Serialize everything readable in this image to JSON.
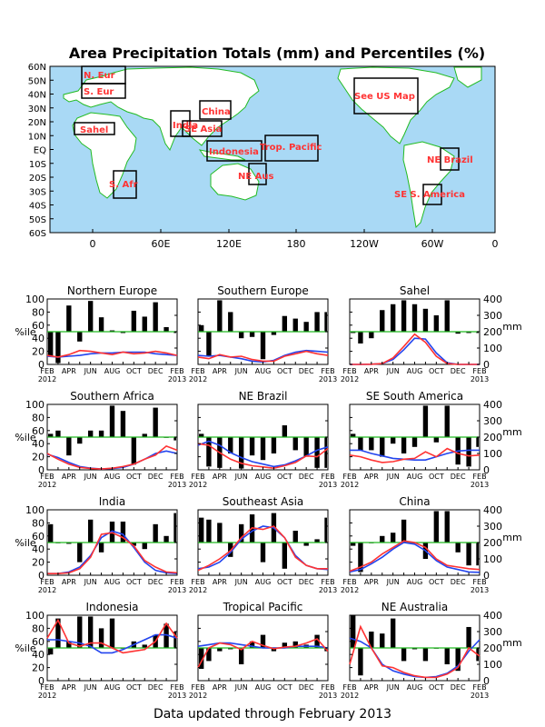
{
  "title": "Area Precipitation Totals (mm) and Percentiles (%)",
  "footer": "Data updated through February 2013",
  "colors": {
    "ocean": "#a9d9f5",
    "land": "#ffffff",
    "coast": "#22bb22",
    "region_box": "#000000",
    "region_label": "#ff3333",
    "bars": "#000000",
    "median_line": "#22bb22",
    "precip_line": "#ff3333",
    "normal_line": "#2244ee"
  },
  "map": {
    "lat_labels": [
      "60N",
      "50N",
      "40N",
      "30N",
      "20N",
      "10N",
      "EQ",
      "10S",
      "20S",
      "30S",
      "40S",
      "50S",
      "60S"
    ],
    "lon_labels": [
      "0",
      "60E",
      "120E",
      "180",
      "120W",
      "60W",
      "0"
    ],
    "regions": [
      "N. Eur",
      "S. Eur",
      "Sahel",
      "India",
      "SE Asia",
      "China",
      "Indonesia",
      "Trop. Pacific",
      "NE Aus",
      "S. Afr",
      "See US Map",
      "NE Brazil",
      "SE S. America"
    ]
  },
  "axis": {
    "pct_label": "%ile",
    "mm_label": "mm",
    "pct_ticks": [
      "0",
      "20",
      "40",
      "60",
      "80",
      "100"
    ],
    "mm_ticks": [
      "0",
      "100",
      "200",
      "300",
      "400"
    ],
    "month_ticks": [
      "FEB",
      "APR",
      "JUN",
      "AUG",
      "OCT",
      "DEC",
      "FEB"
    ],
    "year_start": "2012",
    "year_end": "2013"
  },
  "chart_data": [
    {
      "type": "bar",
      "title": "Northern Europe",
      "percentiles": [
        12,
        2,
        90,
        35,
        97,
        72,
        52,
        48,
        82,
        73,
        95,
        57,
        48
      ],
      "precip": [
        55,
        45,
        60,
        85,
        80,
        70,
        60,
        75,
        65,
        70,
        80,
        70,
        55
      ],
      "normal": [
        50,
        45,
        50,
        55,
        65,
        70,
        70,
        75,
        75,
        75,
        65,
        60,
        55
      ]
    },
    {
      "type": "bar",
      "title": "Southern Europe",
      "percentiles": [
        60,
        12,
        98,
        80,
        40,
        42,
        8,
        45,
        74,
        70,
        65,
        80,
        80
      ],
      "precip": [
        45,
        35,
        60,
        45,
        50,
        30,
        20,
        20,
        50,
        65,
        80,
        65,
        55
      ],
      "normal": [
        55,
        50,
        55,
        45,
        35,
        20,
        15,
        25,
        55,
        75,
        85,
        80,
        75
      ]
    },
    {
      "type": "bar",
      "title": "Sahel",
      "percentiles": [
        48,
        32,
        40,
        83,
        92,
        98,
        92,
        85,
        75,
        98,
        47,
        48,
        48
      ],
      "precip": [
        0,
        0,
        1,
        5,
        40,
        110,
        185,
        135,
        50,
        5,
        0,
        0,
        0
      ],
      "normal": [
        0,
        0,
        1,
        5,
        30,
        90,
        160,
        155,
        70,
        10,
        0,
        0,
        0
      ]
    },
    {
      "type": "bar",
      "title": "Southern Africa",
      "percentiles": [
        55,
        60,
        22,
        40,
        60,
        60,
        98,
        90,
        8,
        55,
        95,
        50,
        45
      ],
      "precip": [
        100,
        65,
        35,
        15,
        8,
        5,
        10,
        20,
        35,
        65,
        90,
        145,
        120
      ],
      "normal": [
        95,
        75,
        45,
        20,
        10,
        5,
        8,
        15,
        35,
        65,
        100,
        115,
        100
      ]
    },
    {
      "type": "bar",
      "title": "NE Brazil",
      "percentiles": [
        55,
        5,
        3,
        25,
        2,
        22,
        15,
        25,
        68,
        30,
        20,
        3,
        3
      ],
      "precip": [
        160,
        150,
        105,
        65,
        40,
        25,
        18,
        10,
        25,
        45,
        85,
        80,
        130
      ],
      "normal": [
        150,
        175,
        150,
        105,
        75,
        50,
        35,
        20,
        30,
        55,
        85,
        120,
        140
      ]
    },
    {
      "type": "bar",
      "title": "SE South America",
      "percentiles": [
        55,
        30,
        30,
        20,
        40,
        25,
        35,
        98,
        42,
        98,
        8,
        5,
        35
      ],
      "precip": [
        90,
        80,
        60,
        45,
        50,
        65,
        70,
        110,
        80,
        130,
        100,
        85,
        90
      ],
      "normal": [
        120,
        120,
        100,
        85,
        70,
        65,
        60,
        60,
        80,
        100,
        115,
        120,
        120
      ]
    },
    {
      "type": "bar",
      "title": "India",
      "percentiles": [
        78,
        50,
        48,
        20,
        85,
        35,
        82,
        82,
        45,
        40,
        78,
        60,
        95
      ],
      "precip": [
        10,
        10,
        15,
        40,
        110,
        250,
        260,
        230,
        180,
        90,
        50,
        20,
        15
      ],
      "normal": [
        10,
        10,
        20,
        50,
        120,
        230,
        270,
        250,
        170,
        80,
        30,
        15,
        10
      ]
    },
    {
      "type": "bar",
      "title": "Southeast Asia",
      "percentiles": [
        88,
        85,
        80,
        28,
        78,
        93,
        20,
        95,
        10,
        68,
        45,
        55,
        88
      ],
      "precip": [
        30,
        60,
        100,
        150,
        230,
        290,
        280,
        300,
        230,
        110,
        60,
        40,
        40
      ],
      "normal": [
        40,
        50,
        80,
        140,
        220,
        270,
        300,
        290,
        230,
        120,
        60,
        40,
        35
      ]
    },
    {
      "type": "bar",
      "title": "China",
      "percentiles": [
        45,
        5,
        50,
        60,
        65,
        85,
        50,
        25,
        98,
        98,
        35,
        15,
        15
      ],
      "precip": [
        25,
        50,
        80,
        130,
        170,
        210,
        200,
        170,
        100,
        60,
        50,
        40,
        35
      ],
      "normal": [
        20,
        35,
        70,
        110,
        160,
        200,
        190,
        150,
        90,
        50,
        35,
        20,
        18
      ]
    },
    {
      "type": "bar",
      "title": "Indonesia",
      "percentiles": [
        40,
        95,
        60,
        98,
        98,
        80,
        95,
        50,
        60,
        55,
        70,
        87,
        75
      ],
      "precip": [
        260,
        370,
        230,
        210,
        230,
        230,
        200,
        170,
        180,
        190,
        240,
        350,
        260
      ],
      "normal": [
        250,
        250,
        240,
        230,
        210,
        170,
        170,
        190,
        220,
        250,
        280,
        280,
        260
      ]
    },
    {
      "type": "bar",
      "title": "Tropical Pacific",
      "percentiles": [
        18,
        30,
        45,
        48,
        25,
        60,
        70,
        45,
        58,
        60,
        55,
        70,
        45
      ],
      "precip": [
        80,
        200,
        230,
        220,
        190,
        240,
        215,
        195,
        205,
        210,
        230,
        255,
        180
      ],
      "normal": [
        210,
        220,
        230,
        230,
        220,
        210,
        200,
        200,
        200,
        210,
        210,
        210,
        200
      ]
    },
    {
      "type": "bar",
      "title": "NE Australia",
      "percentiles": [
        100,
        8,
        75,
        72,
        95,
        30,
        48,
        30,
        50,
        25,
        15,
        82,
        30
      ],
      "precip": [
        100,
        330,
        200,
        90,
        80,
        50,
        30,
        20,
        20,
        40,
        80,
        200,
        150
      ],
      "normal": [
        260,
        240,
        200,
        100,
        60,
        40,
        25,
        20,
        25,
        45,
        90,
        180,
        250
      ]
    }
  ]
}
